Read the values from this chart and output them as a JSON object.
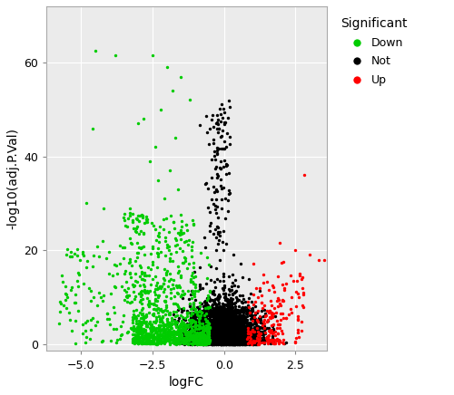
{
  "xlabel": "logFC",
  "ylabel": "-log10(adj.P.Val)",
  "legend_title": "Significant",
  "legend_labels": [
    "Down",
    "Not",
    "Up"
  ],
  "legend_colors": [
    "#00CC00",
    "#000000",
    "#FF0000"
  ],
  "bg_color": "#EBEBEB",
  "grid_color": "#FFFFFF",
  "xlim": [
    -6.2,
    3.6
  ],
  "ylim": [
    -1.5,
    72
  ],
  "xticks": [
    -5.0,
    -2.5,
    0.0,
    2.5
  ],
  "yticks": [
    0,
    20,
    40,
    60
  ],
  "point_size": 6,
  "point_alpha": 1.0,
  "seed": 42
}
